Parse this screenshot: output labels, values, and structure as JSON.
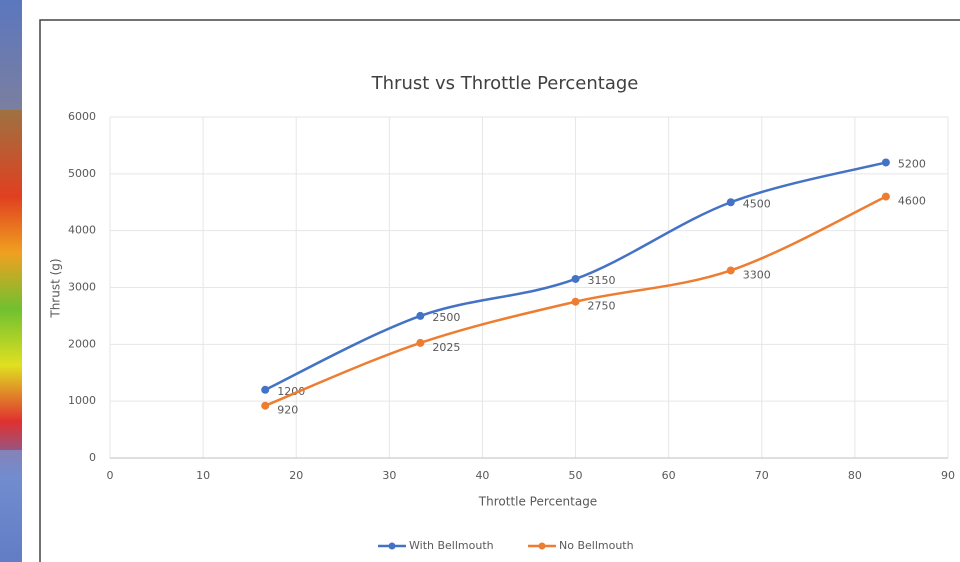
{
  "chart_data": {
    "type": "line",
    "title": "Thrust vs Throttle Percentage",
    "x_label": "Throttle Percentage",
    "y_label": "Thrust (g)",
    "x": [
      16.67,
      33.33,
      50,
      66.67,
      83.33
    ],
    "series": [
      {
        "name": "With Bellmouth",
        "color": "#4472c4",
        "values": [
          1200,
          2500,
          3150,
          4500,
          5200
        ]
      },
      {
        "name": "No Bellmouth",
        "color": "#ed7d31",
        "values": [
          920,
          2025,
          2750,
          3300,
          4600
        ]
      }
    ],
    "xlim": [
      0,
      90
    ],
    "xticks": [
      0,
      10,
      20,
      30,
      40,
      50,
      60,
      70,
      80,
      90
    ],
    "ylim": [
      0,
      6000
    ],
    "yticks": [
      0,
      1000,
      2000,
      3000,
      4000,
      5000,
      6000
    ],
    "grid": true,
    "legend": "bottom"
  }
}
